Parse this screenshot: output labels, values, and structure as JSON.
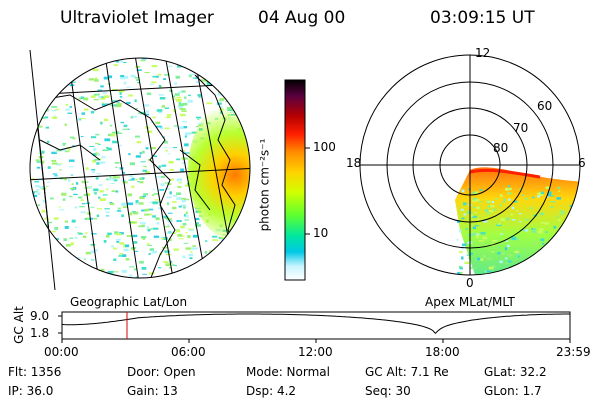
{
  "header": {
    "title": "Ultraviolet Imager",
    "date": "04 Aug 00",
    "time": "03:09:15 UT"
  },
  "colorbar": {
    "unit_label": "photon cm⁻²s⁻¹",
    "ticks": [
      "100",
      "10"
    ],
    "colors": [
      "#000000",
      "#5a0040",
      "#b40000",
      "#ff1e00",
      "#ff8c00",
      "#ffd200",
      "#d2ff00",
      "#5aff32",
      "#00e6a0",
      "#00c8e6",
      "#c8f5ff",
      "#ffffff"
    ]
  },
  "left_map": {
    "caption": "Geographic Lat/Lon"
  },
  "right_polar": {
    "caption": "Apex MLat/MLT",
    "mlt_labels": {
      "top": "12",
      "left": "18",
      "right": "6",
      "bottom": "0"
    },
    "lat_labels": [
      "60",
      "70",
      "80"
    ]
  },
  "altitude_plot": {
    "ylabel": "GC Alt",
    "y_ticks": [
      "9.0",
      "1.8"
    ],
    "x_ticks": [
      "00:00",
      "06:00",
      "12:00",
      "18:00",
      "23:59"
    ]
  },
  "info": {
    "flt": "Flt: 1356",
    "ip": "IP: 36.0",
    "door": "Door: Open",
    "gain": "Gain: 13",
    "mode": "Mode: Normal",
    "dsp": "Dsp:    4.2",
    "gcalt": "GC Alt: 7.1 Re",
    "seq": "Seq: 30",
    "glat": "GLat:   32.2",
    "glon": "GLon:    1.7"
  }
}
